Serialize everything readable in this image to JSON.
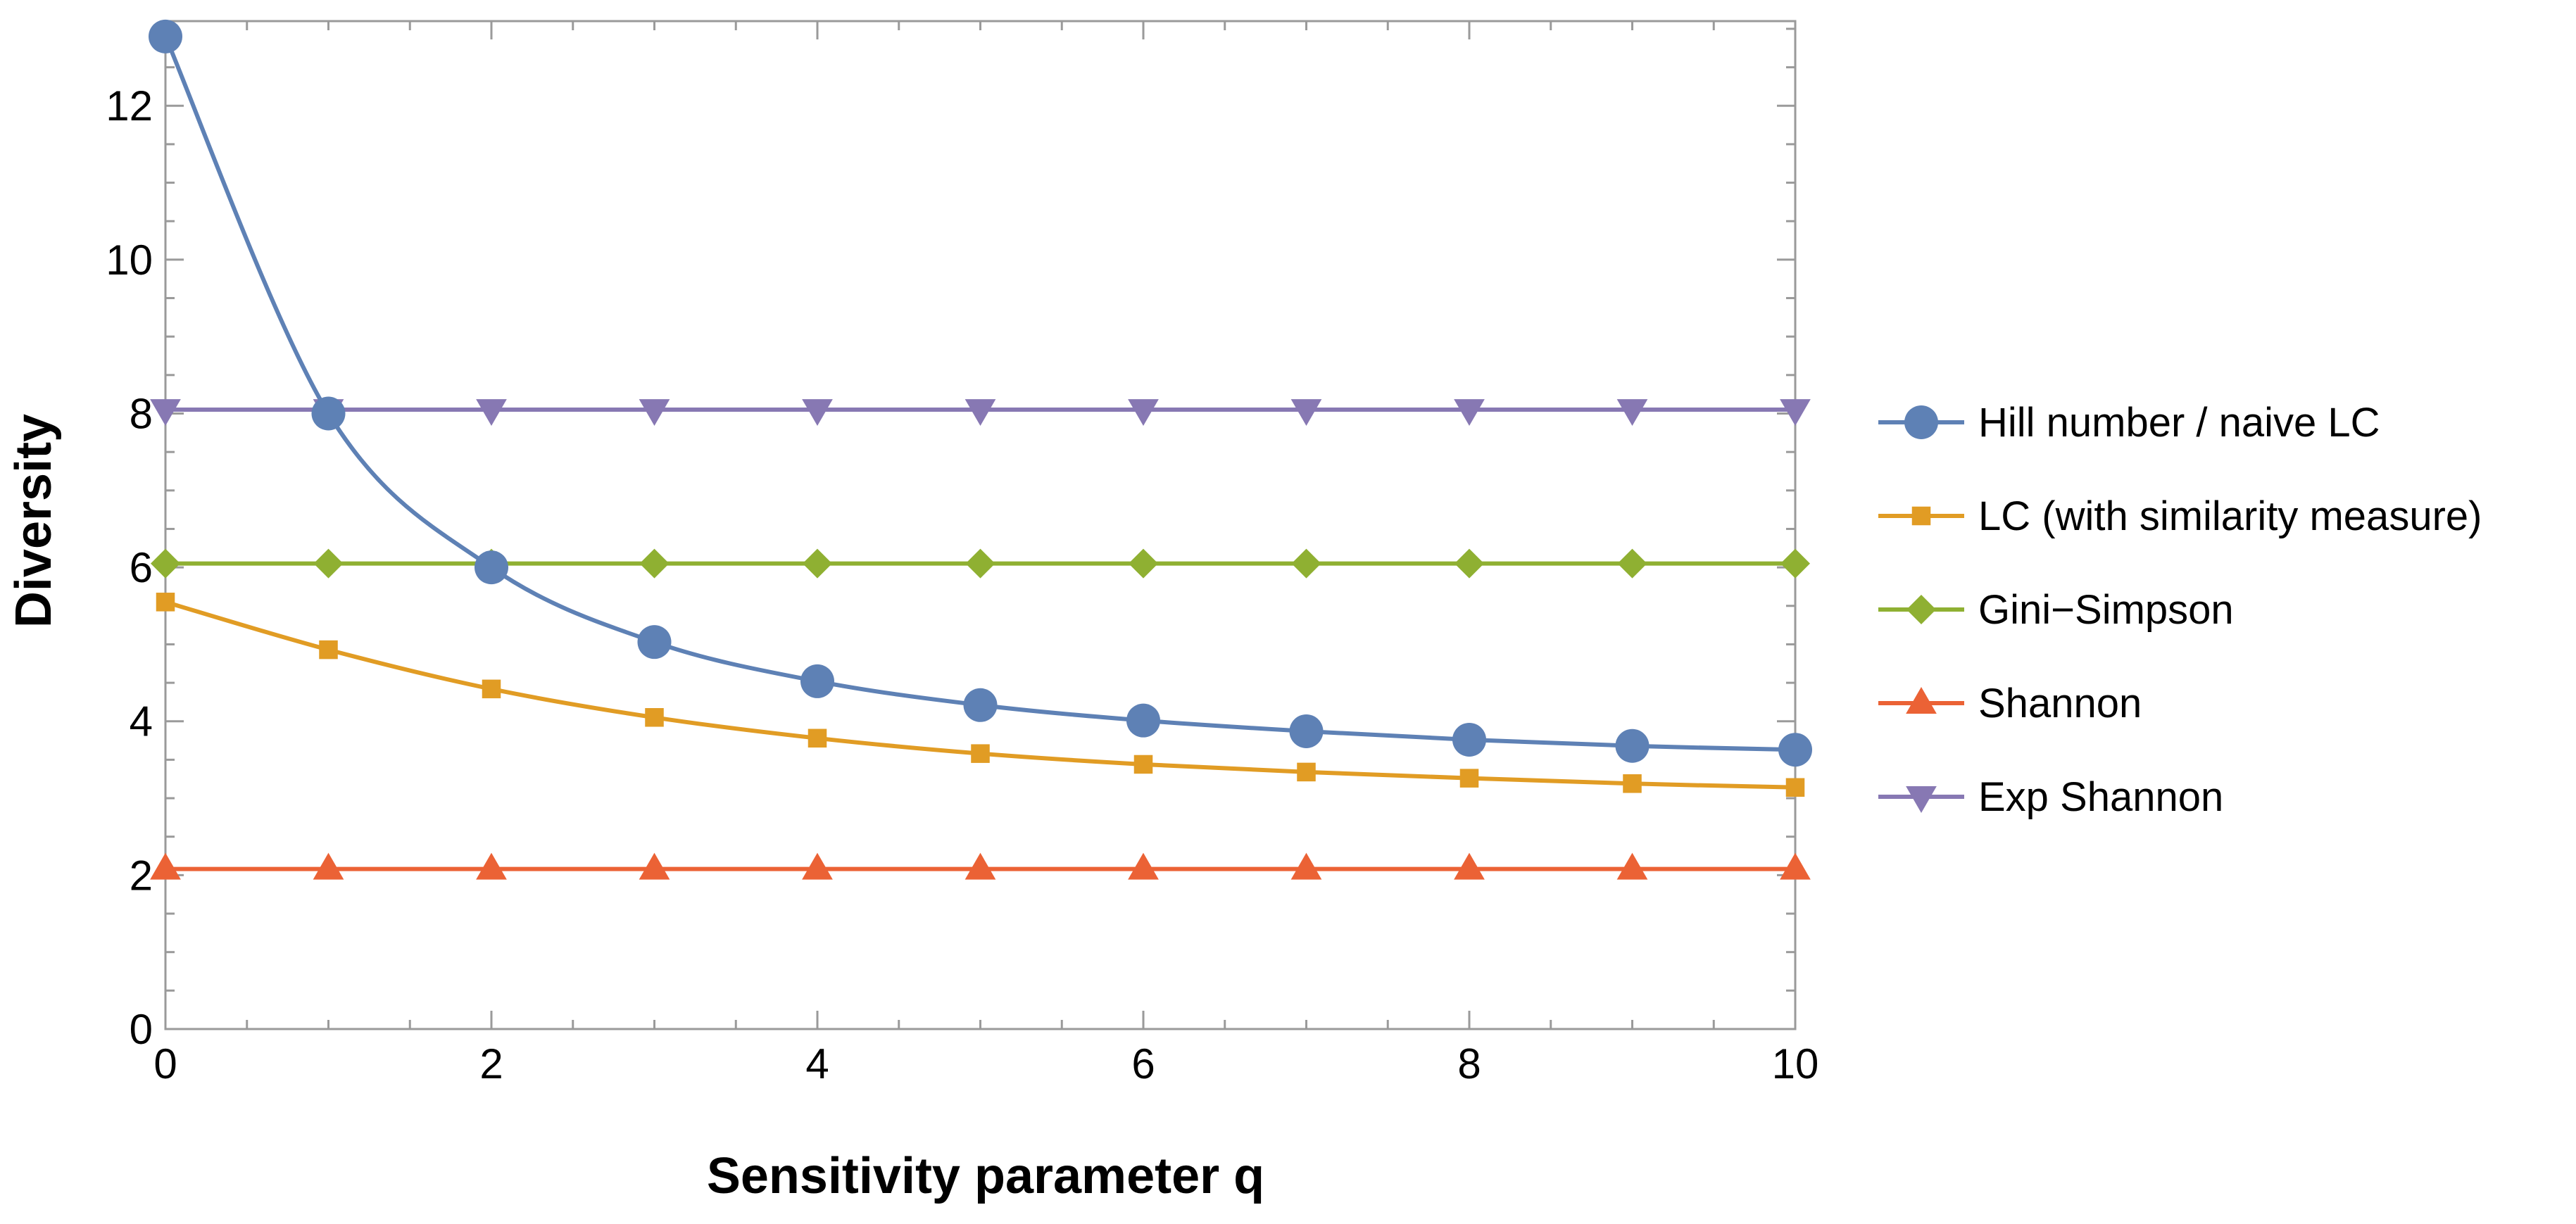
{
  "chart_data": {
    "type": "line",
    "xlabel": "Sensitivity parameter q",
    "ylabel": "Diversity",
    "xlim": [
      0,
      10
    ],
    "ylim": [
      0,
      13.1
    ],
    "x_ticks": [
      0,
      2,
      4,
      6,
      8,
      10
    ],
    "y_ticks": [
      0,
      2,
      4,
      6,
      8,
      10,
      12
    ],
    "x": [
      0,
      1,
      2,
      3,
      4,
      5,
      6,
      7,
      8,
      9,
      10
    ],
    "series": [
      {
        "name": "Hill number / naive LC",
        "marker": "circle",
        "color": "#5E81B5",
        "values": [
          12.9,
          8.0,
          6.0,
          5.03,
          4.52,
          4.21,
          4.01,
          3.87,
          3.76,
          3.68,
          3.63
        ]
      },
      {
        "name": "LC (with similarity measure)",
        "marker": "square",
        "color": "#E19C24",
        "values": [
          5.55,
          4.93,
          4.42,
          4.05,
          3.78,
          3.58,
          3.44,
          3.34,
          3.26,
          3.19,
          3.14
        ]
      },
      {
        "name": "Gini−Simpson",
        "marker": "diamond",
        "color": "#8FB032",
        "values": [
          6.05,
          6.05,
          6.05,
          6.05,
          6.05,
          6.05,
          6.05,
          6.05,
          6.05,
          6.05,
          6.05
        ]
      },
      {
        "name": "Shannon",
        "marker": "triangle-up",
        "color": "#EB6235",
        "values": [
          2.08,
          2.08,
          2.08,
          2.08,
          2.08,
          2.08,
          2.08,
          2.08,
          2.08,
          2.08,
          2.08
        ]
      },
      {
        "name": "Exp Shannon",
        "marker": "triangle-down",
        "color": "#8778B3",
        "values": [
          8.05,
          8.05,
          8.05,
          8.05,
          8.05,
          8.05,
          8.05,
          8.05,
          8.05,
          8.05,
          8.05
        ]
      }
    ],
    "legend_position": "right"
  }
}
